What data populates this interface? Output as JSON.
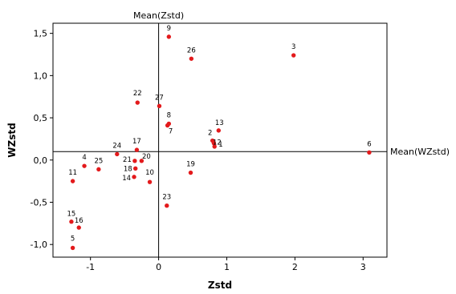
{
  "chart_data": {
    "type": "scatter",
    "xlabel": "Zstd",
    "ylabel": "WZstd",
    "xlim": [
      -1.55,
      3.35
    ],
    "ylim": [
      -1.15,
      1.62
    ],
    "x_ticks": [
      -1,
      0,
      1,
      2,
      3
    ],
    "x_tick_labels": [
      "-1",
      "0",
      "1",
      "2",
      "3"
    ],
    "y_ticks": [
      -1.0,
      -0.5,
      0.0,
      0.5,
      1.0,
      1.5
    ],
    "y_tick_labels": [
      "-1,0",
      "-0,5",
      "0,0",
      "0,5",
      "1,0",
      "1,5"
    ],
    "grid": false,
    "point_color": "#e31a1c",
    "reference_lines": [
      {
        "orientation": "vertical",
        "value": 0.0,
        "label": "Mean(Zstd)"
      },
      {
        "orientation": "horizontal",
        "value": 0.1,
        "label": "Mean(WZstd)"
      }
    ],
    "points": [
      {
        "label": "1",
        "x": 0.82,
        "y": 0.16
      },
      {
        "label": "2",
        "x": 0.79,
        "y": 0.23
      },
      {
        "label": "3",
        "x": 1.98,
        "y": 1.24
      },
      {
        "label": "4",
        "x": -1.09,
        "y": -0.07
      },
      {
        "label": "5",
        "x": -1.26,
        "y": -1.04
      },
      {
        "label": "6",
        "x": 3.09,
        "y": 0.09
      },
      {
        "label": "7",
        "x": 0.13,
        "y": 0.41
      },
      {
        "label": "8",
        "x": 0.15,
        "y": 0.43
      },
      {
        "label": "9",
        "x": 0.15,
        "y": 1.46
      },
      {
        "label": "10",
        "x": -0.13,
        "y": -0.26
      },
      {
        "label": "11",
        "x": -1.26,
        "y": -0.25
      },
      {
        "label": "12",
        "x": 0.81,
        "y": 0.2
      },
      {
        "label": "13",
        "x": 0.88,
        "y": 0.35
      },
      {
        "label": "14",
        "x": -0.36,
        "y": -0.2
      },
      {
        "label": "15",
        "x": -1.28,
        "y": -0.73
      },
      {
        "label": "16",
        "x": -1.17,
        "y": -0.8
      },
      {
        "label": "17",
        "x": -0.32,
        "y": 0.12
      },
      {
        "label": "18",
        "x": -0.34,
        "y": -0.1
      },
      {
        "label": "19",
        "x": 0.47,
        "y": -0.15
      },
      {
        "label": "20",
        "x": -0.25,
        "y": -0.01
      },
      {
        "label": "21",
        "x": -0.35,
        "y": -0.01
      },
      {
        "label": "22",
        "x": -0.31,
        "y": 0.68
      },
      {
        "label": "23",
        "x": 0.12,
        "y": -0.54
      },
      {
        "label": "24",
        "x": -0.61,
        "y": 0.07
      },
      {
        "label": "25",
        "x": -0.88,
        "y": -0.11
      },
      {
        "label": "26",
        "x": 0.48,
        "y": 1.2
      },
      {
        "label": "27",
        "x": 0.01,
        "y": 0.64
      }
    ]
  }
}
